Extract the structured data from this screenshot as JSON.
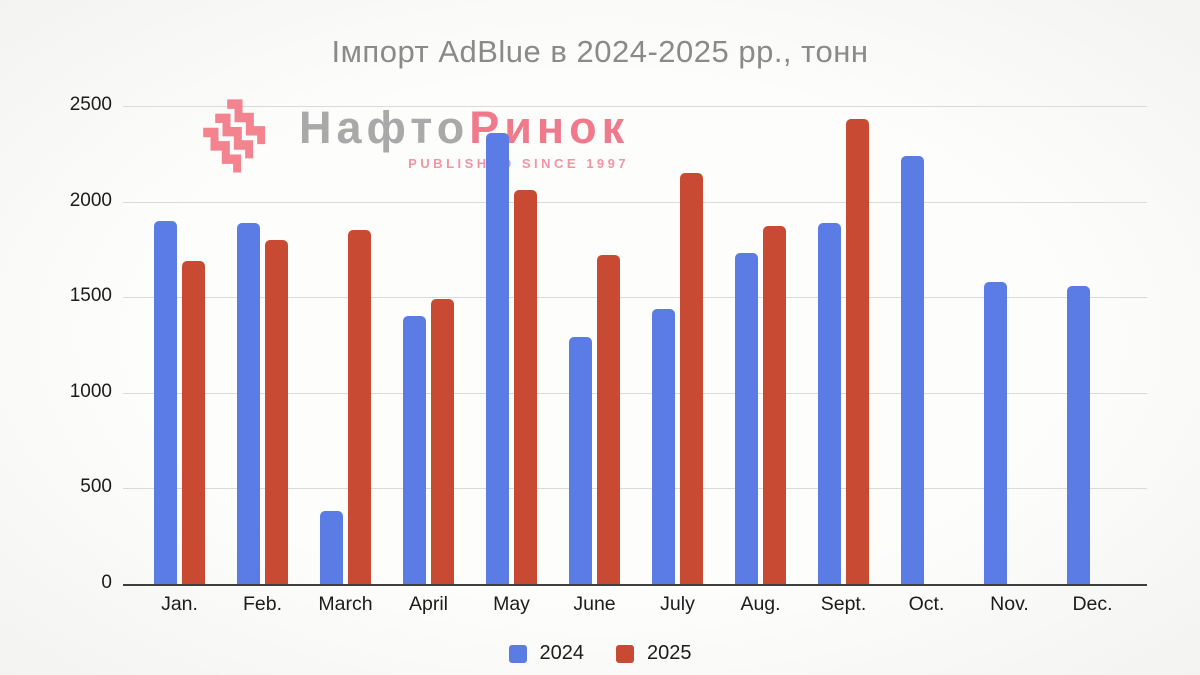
{
  "title": "Імпорт AdBlue в 2024-2025 рр., тонн",
  "watermark": {
    "brand_gray": "Нафто",
    "brand_pink": "Ринок",
    "tagline": "PUBLISHED SINCE 1997",
    "icon_color": "#f2838f"
  },
  "legend": [
    {
      "label": "2024",
      "color": "#5b7ce4"
    },
    {
      "label": "2025",
      "color": "#c94a33"
    }
  ],
  "chart_data": {
    "type": "bar",
    "title": "Імпорт AdBlue в 2024-2025 рр., тонн",
    "xlabel": "",
    "ylabel": "",
    "categories": [
      "Jan.",
      "Feb.",
      "March",
      "April",
      "May",
      "June",
      "July",
      "Aug.",
      "Sept.",
      "Oct.",
      "Nov.",
      "Dec."
    ],
    "series": [
      {
        "name": "2024",
        "color": "#5b7ce4",
        "values": [
          1900,
          1890,
          380,
          1400,
          2360,
          1290,
          1440,
          1730,
          1890,
          2240,
          1580,
          1560
        ]
      },
      {
        "name": "2025",
        "color": "#c94a33",
        "values": [
          1690,
          1800,
          1850,
          1490,
          2060,
          1720,
          2150,
          1870,
          2430,
          null,
          null,
          null
        ]
      }
    ],
    "ylim": [
      0,
      2500
    ],
    "yticks": [
      0,
      500,
      1000,
      1500,
      2000,
      2500
    ],
    "grid": true,
    "legend_position": "bottom"
  }
}
